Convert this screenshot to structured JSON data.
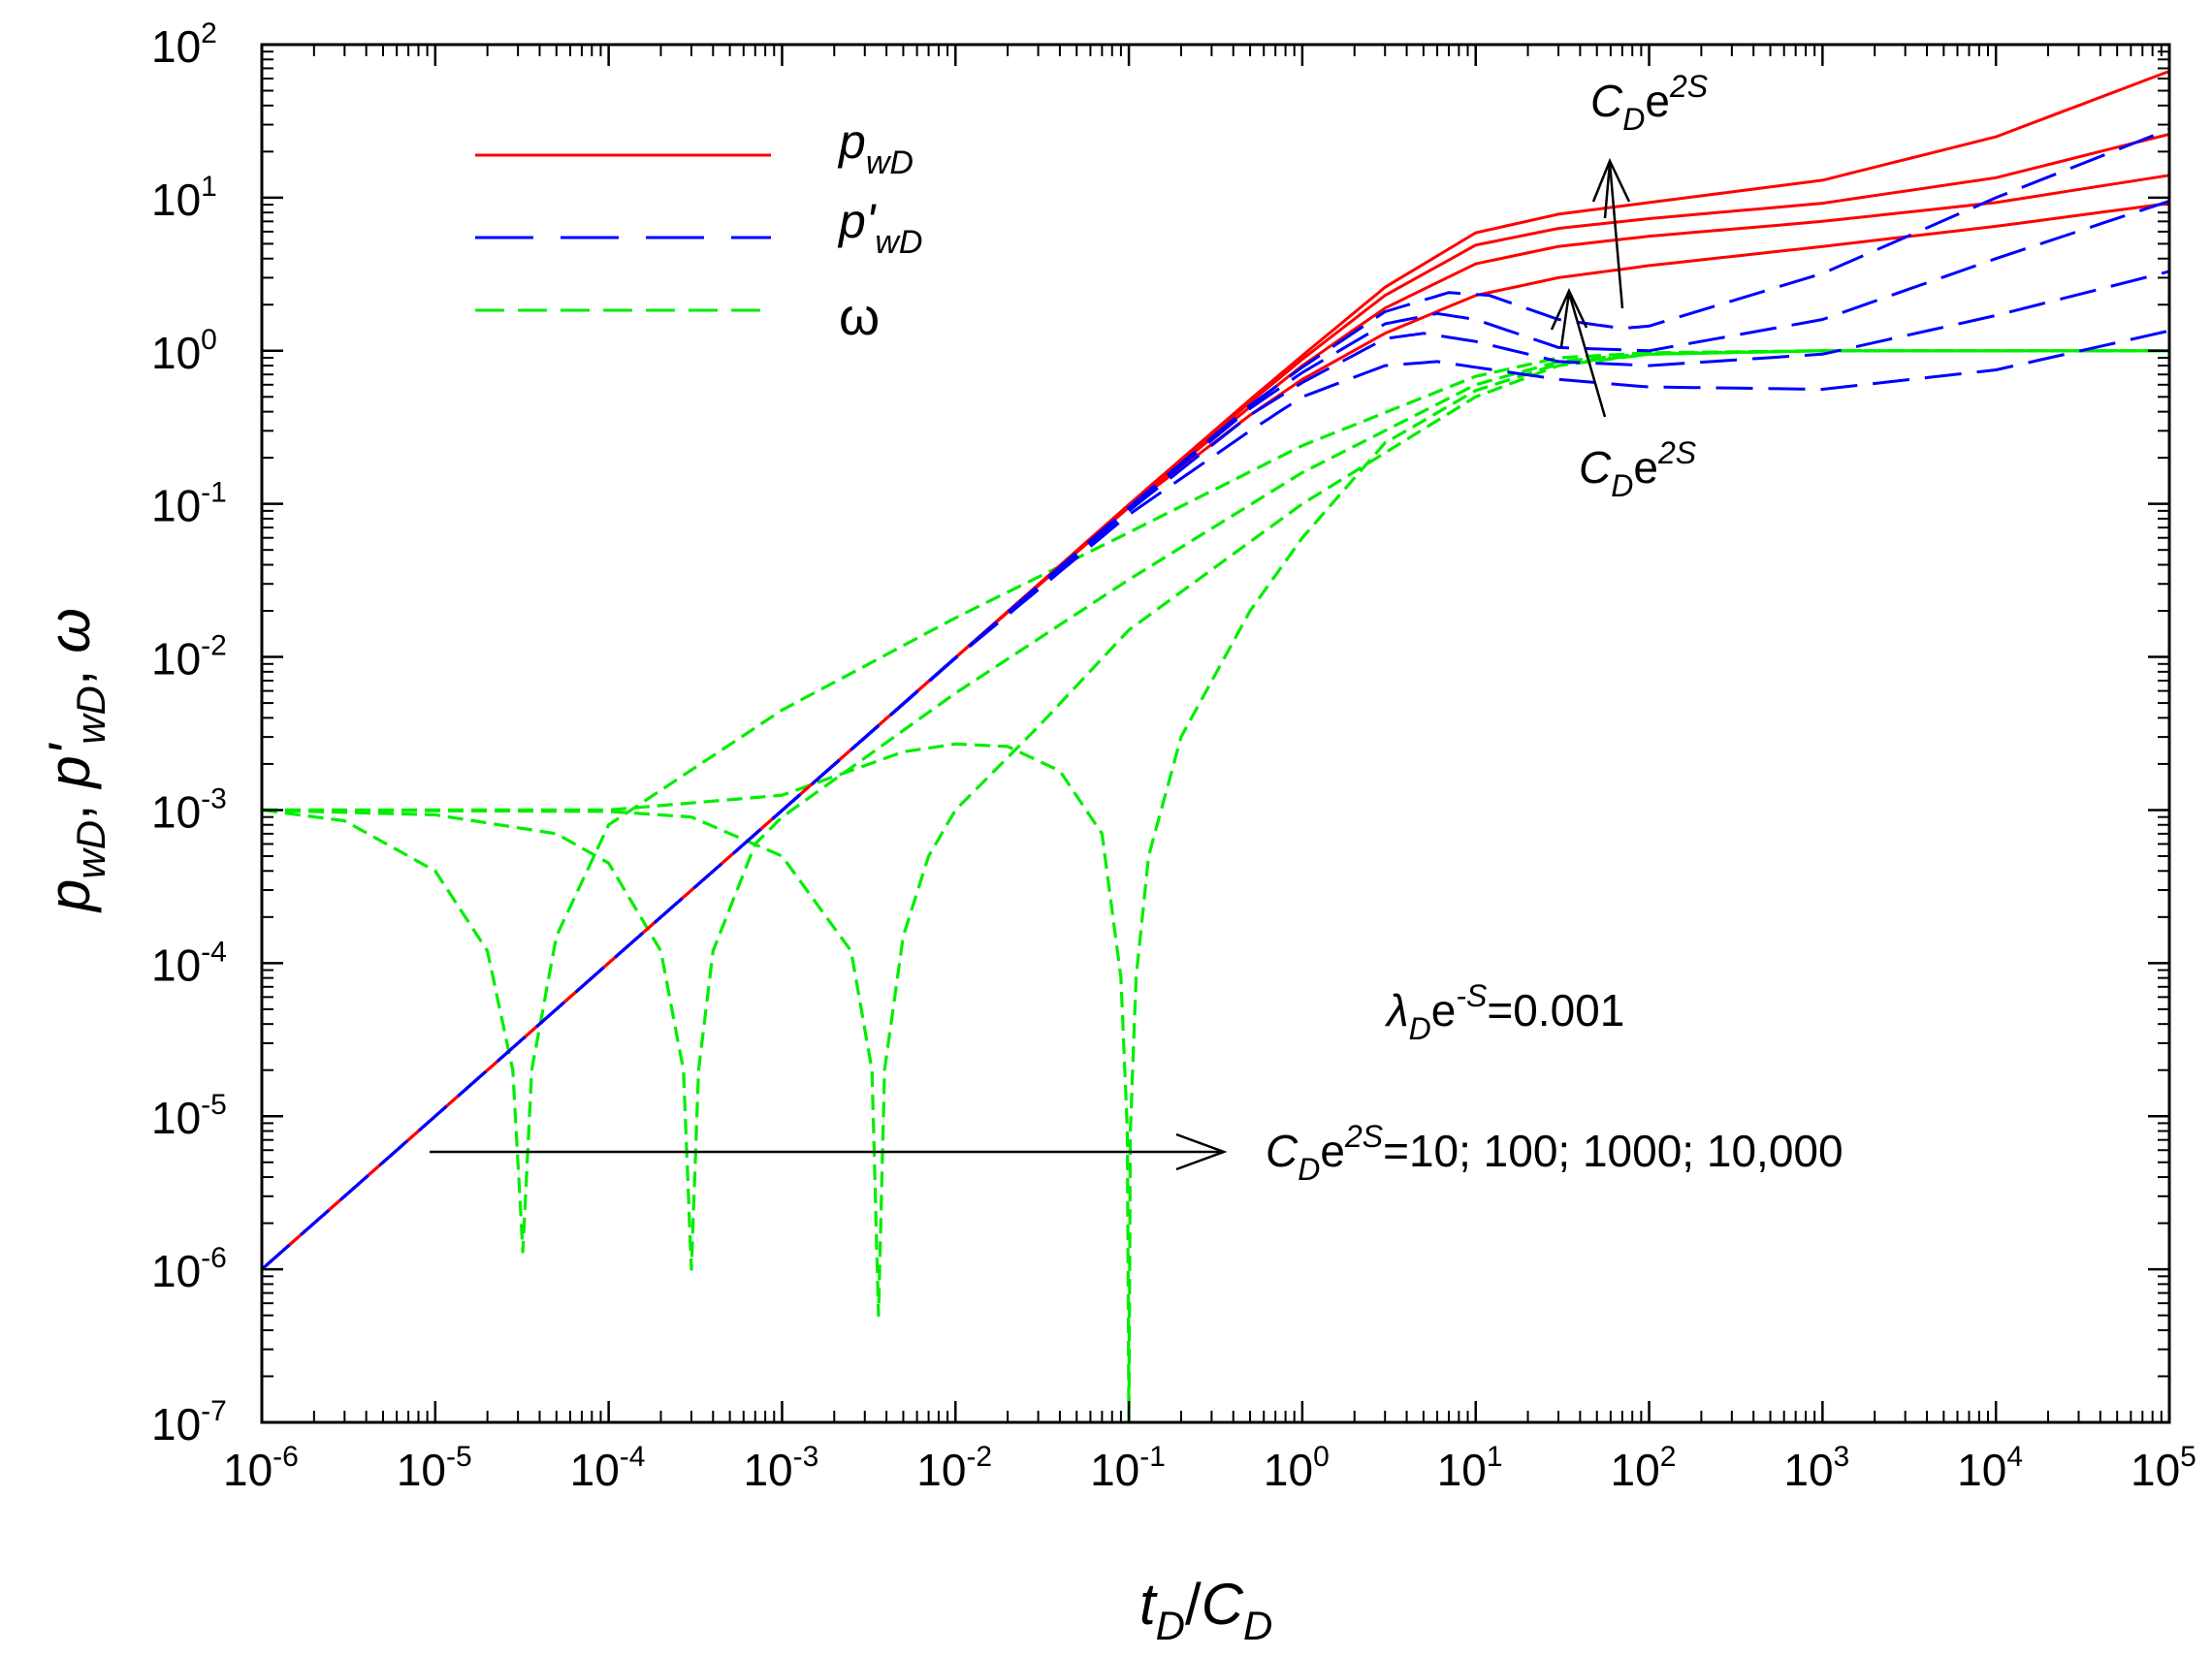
{
  "chart_data": {
    "type": "line",
    "x_scale": "log",
    "y_scale": "log",
    "xlim": [
      1e-06,
      100000.0
    ],
    "ylim": [
      1e-07,
      100
    ],
    "x_ticks": [
      {
        "base": "10",
        "exp": "-6"
      },
      {
        "base": "10",
        "exp": "-5"
      },
      {
        "base": "10",
        "exp": "-4"
      },
      {
        "base": "10",
        "exp": "-3"
      },
      {
        "base": "10",
        "exp": "-2"
      },
      {
        "base": "10",
        "exp": "-1"
      },
      {
        "base": "10",
        "exp": "0"
      },
      {
        "base": "10",
        "exp": "1"
      },
      {
        "base": "10",
        "exp": "2"
      },
      {
        "base": "10",
        "exp": "3"
      },
      {
        "base": "10",
        "exp": "4"
      },
      {
        "base": "10",
        "exp": "5"
      }
    ],
    "y_ticks": [
      {
        "base": "10",
        "exp": "-7"
      },
      {
        "base": "10",
        "exp": "-6"
      },
      {
        "base": "10",
        "exp": "-5"
      },
      {
        "base": "10",
        "exp": "-4"
      },
      {
        "base": "10",
        "exp": "-3"
      },
      {
        "base": "10",
        "exp": "-2"
      },
      {
        "base": "10",
        "exp": "-1"
      },
      {
        "base": "10",
        "exp": "0"
      },
      {
        "base": "10",
        "exp": "1"
      },
      {
        "base": "10",
        "exp": "2"
      }
    ],
    "xlabel": {
      "t": "t",
      "tsub": "D",
      "slash": "/",
      "c": "C",
      "csub": "D"
    },
    "ylabel": {
      "p": "p",
      "psub": "wD",
      "sep1": ", ",
      "pp": "p'",
      "ppsub": "wD",
      "sep2": ", ",
      "omega": "ω"
    },
    "legend": [
      {
        "main": "p",
        "sub": "wD",
        "color": "#ff0000",
        "dash": "solid"
      },
      {
        "main": "p'",
        "sub": "wD",
        "color": "#0000ff",
        "dash": "long-dash"
      },
      {
        "main": "ω",
        "sub": "",
        "color": "#00ee00",
        "dash": "short-dash"
      }
    ],
    "parameter_label": "CDe2S",
    "parameter_values": [
      10,
      100,
      1000,
      10000
    ],
    "lambda_annotation": {
      "l": "λ",
      "lsub": "D",
      "e": "e",
      "esup": "-S",
      "rest": "=0.001"
    },
    "cd_annotation": {
      "c": "C",
      "csub": "D",
      "e": "e",
      "esup": "2S",
      "rest": "=10; 100; 1000; 10,000"
    },
    "arrow_label_top": {
      "c": "C",
      "csub": "D",
      "e": "e",
      "esup": "2S"
    },
    "arrow_label_bottom": {
      "c": "C",
      "csub": "D",
      "e": "e",
      "esup": "2S"
    },
    "series": [
      {
        "name": "pwD, CDe2S=10",
        "color": "#ff0000",
        "dash": "solid",
        "points": [
          [
            1e-06,
            1e-06
          ],
          [
            0.0001,
            0.0001
          ],
          [
            0.01,
            0.0099
          ],
          [
            0.1,
            0.095
          ],
          [
            0.5,
            0.38
          ],
          [
            1,
            0.65
          ],
          [
            3,
            1.3
          ],
          [
            10,
            2.3
          ],
          [
            30,
            3.0
          ],
          [
            100,
            3.6
          ],
          [
            1000,
            4.8
          ],
          [
            10000,
            6.5
          ],
          [
            100000,
            9.2
          ]
        ]
      },
      {
        "name": "pwD, CDe2S=100",
        "color": "#ff0000",
        "dash": "solid",
        "points": [
          [
            1e-06,
            1e-06
          ],
          [
            0.0001,
            0.0001
          ],
          [
            0.01,
            0.0099
          ],
          [
            0.1,
            0.097
          ],
          [
            0.5,
            0.43
          ],
          [
            1,
            0.8
          ],
          [
            3,
            1.9
          ],
          [
            10,
            3.7
          ],
          [
            30,
            4.8
          ],
          [
            100,
            5.6
          ],
          [
            1000,
            7.0
          ],
          [
            10000,
            9.3
          ],
          [
            100000,
            14
          ]
        ]
      },
      {
        "name": "pwD, CDe2S=1000",
        "color": "#ff0000",
        "dash": "solid",
        "points": [
          [
            1e-06,
            1e-06
          ],
          [
            0.0001,
            0.0001
          ],
          [
            0.01,
            0.0099
          ],
          [
            0.1,
            0.098
          ],
          [
            0.5,
            0.46
          ],
          [
            1,
            0.88
          ],
          [
            3,
            2.3
          ],
          [
            10,
            4.9
          ],
          [
            30,
            6.3
          ],
          [
            100,
            7.3
          ],
          [
            1000,
            9.2
          ],
          [
            10000,
            13.5
          ],
          [
            100000,
            26
          ]
        ]
      },
      {
        "name": "pwD, CDe2S=10000",
        "color": "#ff0000",
        "dash": "solid",
        "points": [
          [
            1e-06,
            1e-06
          ],
          [
            0.0001,
            0.0001
          ],
          [
            0.01,
            0.0099
          ],
          [
            0.1,
            0.099
          ],
          [
            0.5,
            0.48
          ],
          [
            1,
            0.93
          ],
          [
            3,
            2.6
          ],
          [
            10,
            5.9
          ],
          [
            30,
            7.8
          ],
          [
            100,
            9.3
          ],
          [
            1000,
            13
          ],
          [
            10000,
            25
          ],
          [
            100000,
            67
          ]
        ]
      },
      {
        "name": "p'wD, CDe2S=10",
        "color": "#0000ff",
        "dash": "long-dash",
        "points": [
          [
            1e-06,
            1e-06
          ],
          [
            0.0001,
            0.0001
          ],
          [
            0.01,
            0.0098
          ],
          [
            0.1,
            0.085
          ],
          [
            0.5,
            0.3
          ],
          [
            1,
            0.5
          ],
          [
            3,
            0.8
          ],
          [
            6,
            0.85
          ],
          [
            10,
            0.78
          ],
          [
            30,
            0.65
          ],
          [
            100,
            0.58
          ],
          [
            1000,
            0.56
          ],
          [
            10000,
            0.75
          ],
          [
            100000,
            1.35
          ]
        ]
      },
      {
        "name": "p'wD, CDe2S=100",
        "color": "#0000ff",
        "dash": "long-dash",
        "points": [
          [
            1e-06,
            1e-06
          ],
          [
            0.0001,
            0.0001
          ],
          [
            0.01,
            0.0099
          ],
          [
            0.1,
            0.09
          ],
          [
            0.5,
            0.38
          ],
          [
            1,
            0.62
          ],
          [
            3,
            1.2
          ],
          [
            5,
            1.3
          ],
          [
            10,
            1.15
          ],
          [
            30,
            0.85
          ],
          [
            100,
            0.8
          ],
          [
            1000,
            0.95
          ],
          [
            10000,
            1.7
          ],
          [
            100000,
            3.3
          ]
        ]
      },
      {
        "name": "p'wD, CDe2S=1000",
        "color": "#0000ff",
        "dash": "long-dash",
        "points": [
          [
            1e-06,
            1e-06
          ],
          [
            0.0001,
            0.0001
          ],
          [
            0.01,
            0.0099
          ],
          [
            0.1,
            0.093
          ],
          [
            0.5,
            0.42
          ],
          [
            1,
            0.72
          ],
          [
            3,
            1.5
          ],
          [
            6,
            1.75
          ],
          [
            10,
            1.6
          ],
          [
            30,
            1.05
          ],
          [
            100,
            1.0
          ],
          [
            1000,
            1.6
          ],
          [
            10000,
            4.0
          ],
          [
            100000,
            9.5
          ]
        ]
      },
      {
        "name": "p'wD, CDe2S=10000",
        "color": "#0000ff",
        "dash": "long-dash",
        "points": [
          [
            1e-06,
            1e-06
          ],
          [
            0.0001,
            0.0001
          ],
          [
            0.01,
            0.0099
          ],
          [
            0.1,
            0.095
          ],
          [
            0.5,
            0.44
          ],
          [
            1,
            0.78
          ],
          [
            3,
            1.8
          ],
          [
            7,
            2.4
          ],
          [
            12,
            2.3
          ],
          [
            30,
            1.6
          ],
          [
            70,
            1.4
          ],
          [
            100,
            1.45
          ],
          [
            1000,
            3.2
          ],
          [
            10000,
            10
          ],
          [
            100000,
            28
          ]
        ]
      },
      {
        "name": "ω, CDe2S=10",
        "color": "#00ee00",
        "dash": "short-dash",
        "points": [
          [
            1e-06,
            0.001
          ],
          [
            3e-06,
            0.00085
          ],
          [
            1e-05,
            0.0004
          ],
          [
            2e-05,
            0.00012
          ],
          [
            2.8e-05,
            2e-05
          ],
          [
            3.2e-05,
            1.3e-06
          ],
          [
            3.6e-05,
            2e-05
          ],
          [
            5e-05,
            0.00015
          ],
          [
            0.0001,
            0.0008
          ],
          [
            0.001,
            0.0045
          ],
          [
            0.01,
            0.018
          ],
          [
            0.1,
            0.065
          ],
          [
            1,
            0.24
          ],
          [
            10,
            0.68
          ],
          [
            30,
            0.9
          ],
          [
            100,
            0.97
          ],
          [
            1000,
            1.0
          ],
          [
            100000,
            1.0
          ]
        ]
      },
      {
        "name": "ω, CDe2S=100",
        "color": "#00ee00",
        "dash": "short-dash",
        "points": [
          [
            1e-06,
            0.001
          ],
          [
            1e-05,
            0.00093
          ],
          [
            5e-05,
            0.0007
          ],
          [
            0.0001,
            0.00045
          ],
          [
            0.0002,
            0.00012
          ],
          [
            0.00027,
            2e-05
          ],
          [
            0.0003,
            1e-06
          ],
          [
            0.00033,
            2e-05
          ],
          [
            0.0004,
            0.00012
          ],
          [
            0.0007,
            0.0006
          ],
          [
            0.001,
            0.0009
          ],
          [
            0.01,
            0.0058
          ],
          [
            0.1,
            0.032
          ],
          [
            1,
            0.16
          ],
          [
            10,
            0.6
          ],
          [
            30,
            0.85
          ],
          [
            100,
            0.96
          ],
          [
            1000,
            1.0
          ],
          [
            100000,
            1.0
          ]
        ]
      },
      {
        "name": "ω, CDe2S=1000",
        "color": "#00ee00",
        "dash": "short-dash",
        "points": [
          [
            1e-06,
            0.001
          ],
          [
            0.0001,
            0.00098
          ],
          [
            0.0003,
            0.0009
          ],
          [
            0.001,
            0.0005
          ],
          [
            0.0025,
            0.00012
          ],
          [
            0.0033,
            2e-05
          ],
          [
            0.0036,
            5e-07
          ],
          [
            0.0039,
            2e-05
          ],
          [
            0.005,
            0.00015
          ],
          [
            0.007,
            0.0005
          ],
          [
            0.01,
            0.001
          ],
          [
            0.03,
            0.0035
          ],
          [
            0.1,
            0.015
          ],
          [
            1,
            0.1
          ],
          [
            10,
            0.5
          ],
          [
            30,
            0.8
          ],
          [
            100,
            0.95
          ],
          [
            1000,
            1.0
          ],
          [
            100000,
            1.0
          ]
        ]
      },
      {
        "name": "ω, CDe2S=10000",
        "color": "#00ee00",
        "dash": "short-dash",
        "points": [
          [
            1e-06,
            0.001
          ],
          [
            0.0001,
            0.001
          ],
          [
            0.001,
            0.00125
          ],
          [
            0.005,
            0.0024
          ],
          [
            0.01,
            0.0027
          ],
          [
            0.02,
            0.0026
          ],
          [
            0.04,
            0.0018
          ],
          [
            0.07,
            0.0007
          ],
          [
            0.09,
            8e-05
          ],
          [
            0.098,
            8e-06
          ],
          [
            0.1,
            1e-07
          ],
          [
            0.102,
            8e-06
          ],
          [
            0.11,
            8e-05
          ],
          [
            0.13,
            0.0005
          ],
          [
            0.2,
            0.003
          ],
          [
            0.5,
            0.02
          ],
          [
            1,
            0.06
          ],
          [
            3,
            0.25
          ],
          [
            10,
            0.55
          ],
          [
            30,
            0.82
          ],
          [
            100,
            0.95
          ],
          [
            1000,
            1.0
          ],
          [
            100000,
            1.0
          ]
        ]
      }
    ]
  }
}
